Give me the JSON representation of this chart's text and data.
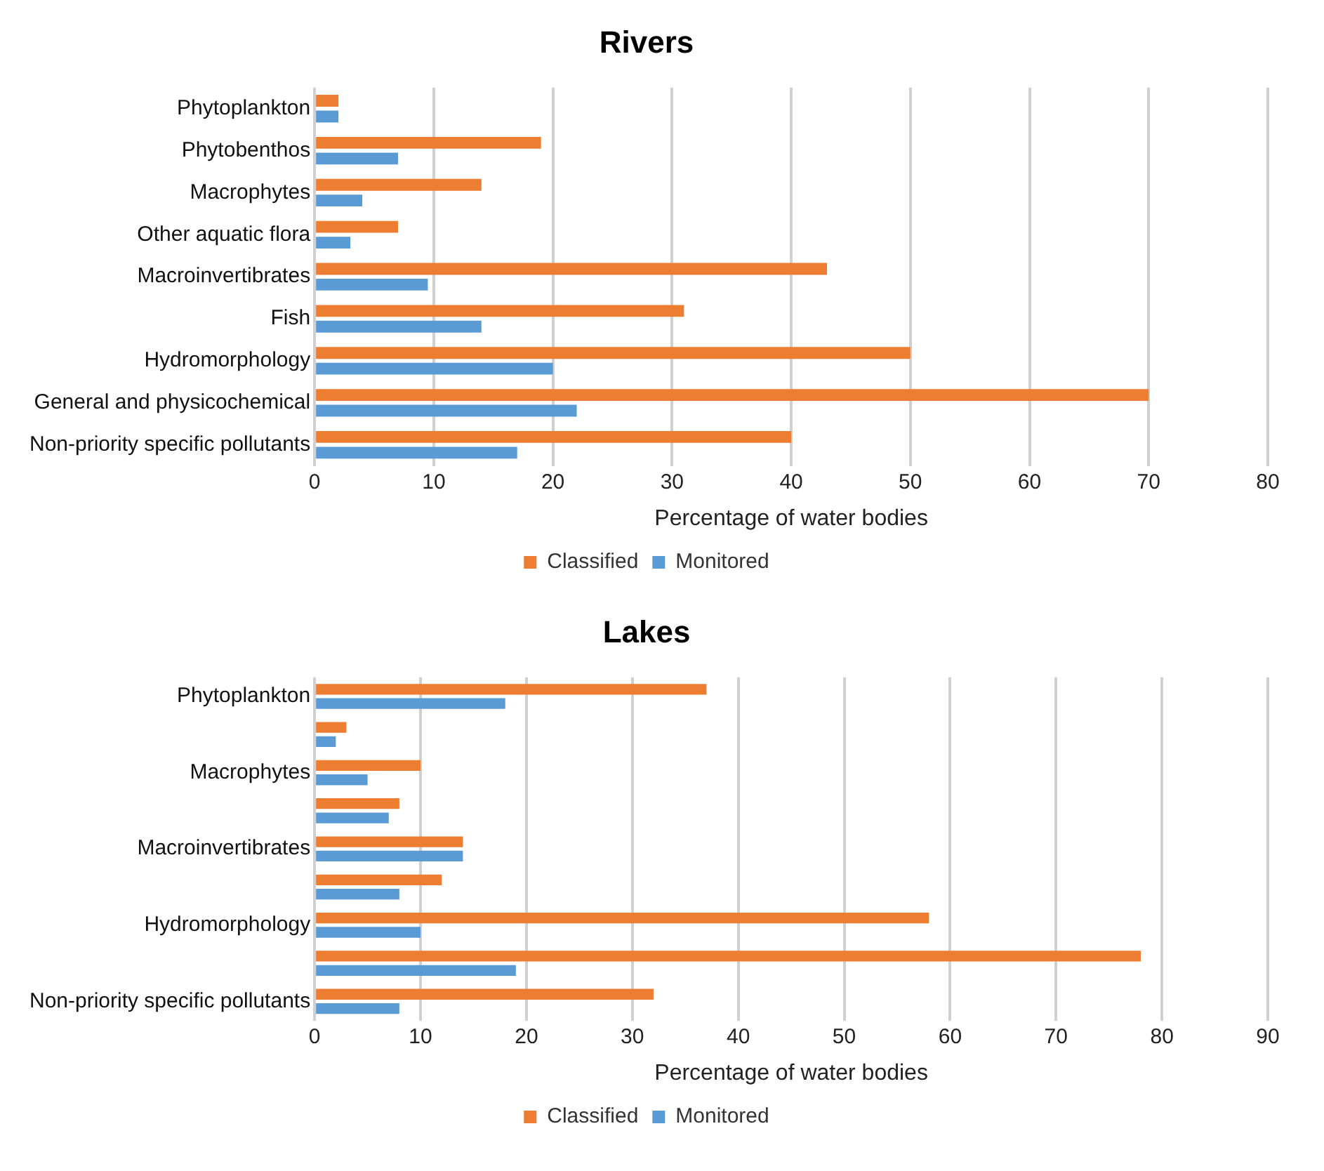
{
  "chart_data": [
    {
      "type": "bar",
      "orientation": "horizontal",
      "title": "Rivers",
      "xlabel": "Percentage of water bodies",
      "categories": [
        "Phytoplankton",
        "Phytobenthos",
        "Macrophytes",
        "Other aquatic flora",
        "Macroinvertibrates",
        "Fish",
        "Hydromorphology",
        "General and physicochemical",
        "Non-priority specific pollutants"
      ],
      "series": [
        {
          "name": "Classified",
          "color": "#ed7d31",
          "values": [
            2,
            19,
            14,
            7,
            43,
            31,
            50,
            70,
            40
          ]
        },
        {
          "name": "Monitored",
          "color": "#5b9bd5",
          "values": [
            2,
            7,
            4,
            3,
            9.5,
            14,
            20,
            22,
            17
          ]
        }
      ],
      "xlim": [
        0,
        80
      ],
      "xticks": [
        0,
        10,
        20,
        30,
        40,
        50,
        60,
        70,
        80
      ],
      "grid": "x",
      "legend": "bottom"
    },
    {
      "type": "bar",
      "orientation": "horizontal",
      "title": "Lakes",
      "xlabel": "Percentage of water bodies",
      "categories": [
        "Phytoplankton",
        null,
        "Macrophytes",
        null,
        "Macroinvertibrates",
        null,
        "Hydromorphology",
        null,
        "Non-priority specific pollutants"
      ],
      "series": [
        {
          "name": "Classified",
          "color": "#ed7d31",
          "values": [
            37,
            3,
            10,
            8,
            14,
            12,
            58,
            78,
            32
          ]
        },
        {
          "name": "Monitored",
          "color": "#5b9bd5",
          "values": [
            18,
            2,
            5,
            7,
            14,
            8,
            10,
            19,
            8
          ]
        }
      ],
      "xlim": [
        0,
        90
      ],
      "xticks": [
        0,
        10,
        20,
        30,
        40,
        50,
        60,
        70,
        80,
        90
      ],
      "grid": "x",
      "legend": "bottom"
    }
  ]
}
